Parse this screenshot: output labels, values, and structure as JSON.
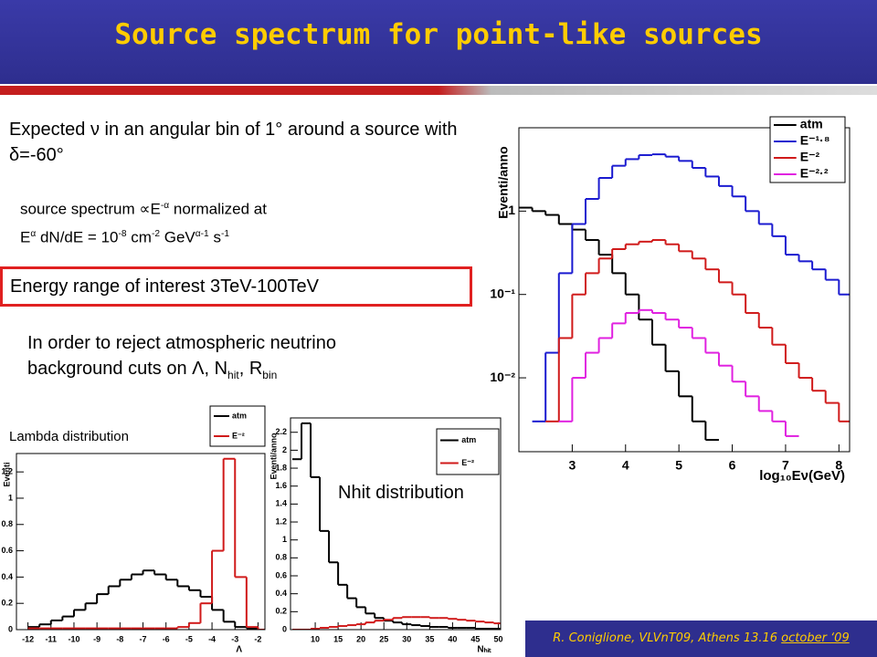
{
  "header": {
    "title": "Source spectrum for point-like sources"
  },
  "body": {
    "expected": "Expected ν in an angular bin of 1° around a source with δ=-60°",
    "spectrum_line1": [
      "source spectrum ∝E",
      "-α",
      " normalized at"
    ],
    "spectrum_line2": [
      "E",
      "α",
      " dN/dE = 10",
      "-8",
      " cm",
      "-2",
      " GeV",
      "α-1",
      " s",
      "-1"
    ],
    "energy_range": "Energy range of interest 3TeV-100TeV",
    "cuts": [
      "In order to reject atmospheric neutrino background cuts on Λ, N",
      "hit",
      ", R",
      "bin"
    ],
    "lambda_caption": "Lambda distribution",
    "nhit_caption": "Nhit distribution"
  },
  "footer": {
    "citation": "R. Coniglione, VLVnT09, Athens 13.16 ",
    "date": "october ‘09"
  },
  "chart_data": [
    {
      "type": "step",
      "log_y": true,
      "xlabel": "log₁₀Eν(GeV)",
      "ylabel": "Eventi/anno",
      "x": [
        2.0,
        2.25,
        2.5,
        2.75,
        3.0,
        3.25,
        3.5,
        3.75,
        4.0,
        4.25,
        4.5,
        4.75,
        5.0,
        5.25,
        5.5,
        5.75,
        6.0,
        6.25,
        6.5,
        6.75,
        7.0,
        7.25,
        7.5,
        7.75,
        8.0
      ],
      "xlim": [
        2,
        8.2
      ],
      "ylim": [
        0.0013,
        10
      ],
      "xticks": [
        3,
        4,
        5,
        6,
        7,
        8
      ],
      "yticks": [
        1,
        {
          "value": 0.1,
          "label": "10⁻¹"
        },
        {
          "value": 0.01,
          "label": "10⁻²"
        }
      ],
      "series": [
        {
          "name": "atm",
          "color": "#000000",
          "values": [
            1.1,
            1.0,
            0.9,
            0.7,
            0.6,
            0.45,
            0.3,
            0.18,
            0.1,
            0.05,
            0.025,
            0.012,
            0.006,
            0.003,
            0.0018,
            null,
            null,
            null,
            null,
            null,
            null,
            null,
            null,
            null,
            null
          ]
        },
        {
          "name": "E⁻¹·⁸",
          "color": "#1a1ad0",
          "values": [
            null,
            0.003,
            0.02,
            0.18,
            0.7,
            1.4,
            2.5,
            3.5,
            4.2,
            4.7,
            4.8,
            4.5,
            4.0,
            3.3,
            2.6,
            2.0,
            1.5,
            1.0,
            0.7,
            0.5,
            0.3,
            0.25,
            0.2,
            0.15,
            0.1
          ]
        },
        {
          "name": "E⁻²",
          "color": "#d01a1a",
          "values": [
            null,
            null,
            0.003,
            0.03,
            0.1,
            0.18,
            0.27,
            0.35,
            0.4,
            0.43,
            0.45,
            0.4,
            0.33,
            0.27,
            0.2,
            0.14,
            0.1,
            0.06,
            0.04,
            0.025,
            0.015,
            0.01,
            0.007,
            0.005,
            0.003
          ]
        },
        {
          "name": "E⁻²·²",
          "color": "#e020e0",
          "values": [
            null,
            null,
            null,
            0.003,
            0.01,
            0.02,
            0.03,
            0.045,
            0.06,
            0.065,
            0.06,
            0.05,
            0.04,
            0.03,
            0.02,
            0.014,
            0.009,
            0.006,
            0.004,
            0.003,
            0.002,
            null,
            null,
            null,
            null
          ]
        }
      ]
    },
    {
      "type": "step",
      "log_y": false,
      "xlabel": "Λ",
      "ylabel": "Eventi",
      "x": [
        -12,
        -11.5,
        -11,
        -10.5,
        -10,
        -9.5,
        -9,
        -8.5,
        -8,
        -7.5,
        -7,
        -6.5,
        -6,
        -5.5,
        -5,
        -4.5,
        -4,
        -3.5,
        -3,
        -2.5,
        -2
      ],
      "xlim": [
        -12.5,
        -1.7
      ],
      "ylim": [
        0,
        1.34
      ],
      "xticks": [
        -12,
        -11,
        -10,
        -9,
        -8,
        -7,
        -6,
        -5,
        -4,
        -3,
        -2
      ],
      "yticks": [
        0,
        0.2,
        0.4,
        0.6,
        0.8,
        1,
        1.2
      ],
      "series": [
        {
          "name": "atm",
          "color": "#000000",
          "values": [
            0.02,
            0.04,
            0.07,
            0.1,
            0.15,
            0.2,
            0.27,
            0.33,
            0.38,
            0.42,
            0.45,
            0.42,
            0.38,
            0.33,
            0.3,
            0.25,
            0.15,
            0.06,
            0.02,
            0.01,
            0
          ]
        },
        {
          "name": "E⁻²",
          "color": "#d01a1a",
          "values": [
            0.01,
            0.01,
            0.01,
            0.01,
            0.01,
            0.01,
            0.01,
            0.01,
            0.01,
            0.01,
            0.01,
            0.01,
            0.01,
            0.02,
            0.05,
            0.2,
            0.6,
            1.3,
            0.4,
            0.02,
            0
          ]
        }
      ]
    },
    {
      "type": "step",
      "log_y": false,
      "xlabel": "Nₕᵢₜ",
      "ylabel": "Eventi/anno",
      "x": [
        5,
        7,
        9,
        11,
        13,
        15,
        17,
        19,
        21,
        23,
        25,
        27,
        29,
        31,
        33,
        35,
        37,
        39,
        41,
        43,
        45,
        47,
        49
      ],
      "xlim": [
        4.6,
        50.5
      ],
      "ylim": [
        0,
        2.36
      ],
      "xticks": [
        10,
        15,
        20,
        25,
        30,
        35,
        40,
        45,
        50
      ],
      "yticks": [
        0,
        0.2,
        0.4,
        0.6,
        0.8,
        1,
        1.2,
        1.4,
        1.6,
        1.8,
        2,
        2.2
      ],
      "series": [
        {
          "name": "atm",
          "color": "#000000",
          "values": [
            1.9,
            2.3,
            1.7,
            1.1,
            0.75,
            0.5,
            0.35,
            0.25,
            0.18,
            0.13,
            0.1,
            0.08,
            0.06,
            0.05,
            0.04,
            0.03,
            0.03,
            0.02,
            0.02,
            0.02,
            0.01,
            0.01,
            0.01
          ]
        },
        {
          "name": "E⁻²",
          "color": "#d01a1a",
          "values": [
            0,
            0,
            0.01,
            0.02,
            0.03,
            0.04,
            0.05,
            0.06,
            0.08,
            0.1,
            0.11,
            0.13,
            0.14,
            0.14,
            0.14,
            0.13,
            0.13,
            0.12,
            0.11,
            0.1,
            0.09,
            0.08,
            0.07
          ]
        }
      ]
    }
  ]
}
